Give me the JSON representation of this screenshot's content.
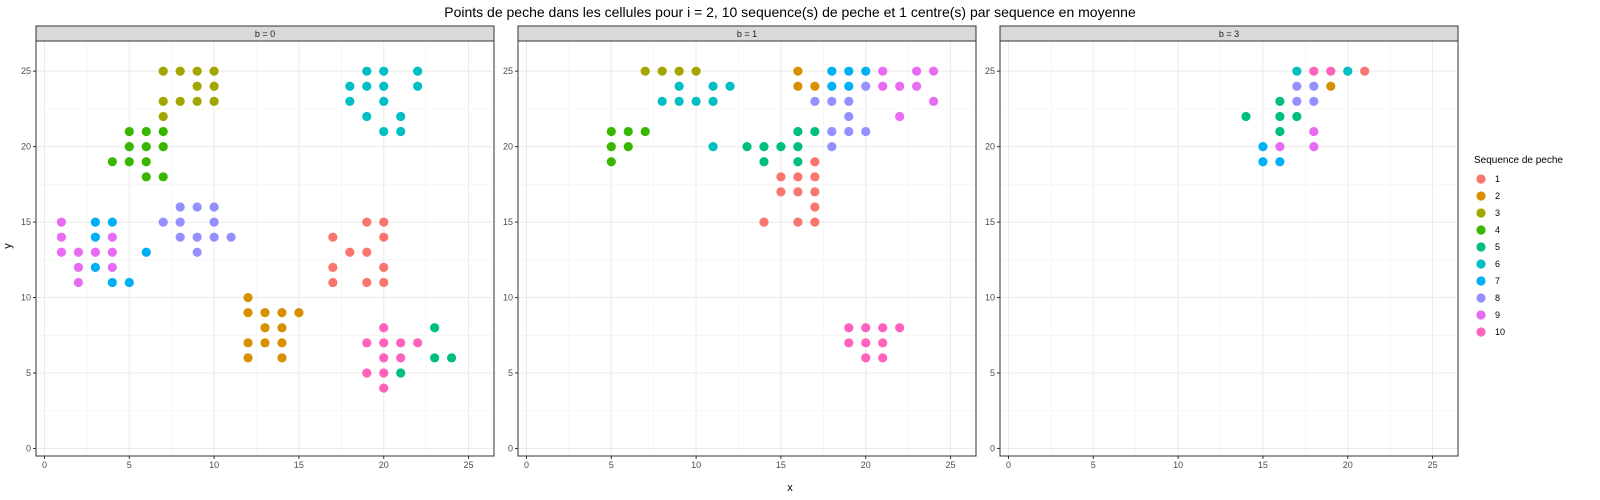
{
  "chart_data": {
    "type": "scatter",
    "title": "Points de peche dans les cellules pour i = 2, 10 sequence(s) de peche et 1 centre(s) par sequence en moyenne",
    "xlabel": "x",
    "ylabel": "y",
    "xlim": [
      -0.5,
      26.5
    ],
    "ylim": [
      -0.5,
      27
    ],
    "x_ticks": [
      0,
      5,
      10,
      15,
      20,
      25
    ],
    "y_ticks": [
      0,
      5,
      10,
      15,
      20,
      25
    ],
    "grid": true,
    "legend": {
      "title": "Sequence de peche",
      "placement": "right",
      "entries": [
        {
          "label": "1",
          "color": "#F8766D"
        },
        {
          "label": "2",
          "color": "#D89000"
        },
        {
          "label": "3",
          "color": "#A3A500"
        },
        {
          "label": "4",
          "color": "#39B600"
        },
        {
          "label": "5",
          "color": "#00BF7D"
        },
        {
          "label": "6",
          "color": "#00BFC4"
        },
        {
          "label": "7",
          "color": "#00B0F6"
        },
        {
          "label": "8",
          "color": "#9590FF"
        },
        {
          "label": "9",
          "color": "#E76BF3"
        },
        {
          "label": "10",
          "color": "#FF62BC"
        }
      ]
    },
    "panels": [
      {
        "label": "b = 0",
        "points": [
          [
            17,
            14,
            1
          ],
          [
            18,
            13,
            1
          ],
          [
            19,
            13,
            1
          ],
          [
            17,
            12,
            1
          ],
          [
            17,
            11,
            1
          ],
          [
            19,
            11,
            1
          ],
          [
            20,
            11,
            1
          ],
          [
            20,
            12,
            1
          ],
          [
            19,
            15,
            1
          ],
          [
            20,
            15,
            1
          ],
          [
            20,
            14,
            1
          ],
          [
            12,
            10,
            2
          ],
          [
            12,
            9,
            2
          ],
          [
            13,
            9,
            2
          ],
          [
            14,
            9,
            2
          ],
          [
            15,
            9,
            2
          ],
          [
            13,
            8,
            2
          ],
          [
            14,
            8,
            2
          ],
          [
            12,
            7,
            2
          ],
          [
            13,
            7,
            2
          ],
          [
            14,
            7,
            2
          ],
          [
            12,
            6,
            2
          ],
          [
            14,
            6,
            2
          ],
          [
            7,
            25,
            3
          ],
          [
            8,
            25,
            3
          ],
          [
            9,
            25,
            3
          ],
          [
            10,
            25,
            3
          ],
          [
            9,
            24,
            3
          ],
          [
            10,
            24,
            3
          ],
          [
            7,
            23,
            3
          ],
          [
            8,
            23,
            3
          ],
          [
            9,
            23,
            3
          ],
          [
            10,
            23,
            3
          ],
          [
            7,
            22,
            3
          ],
          [
            5,
            21,
            4
          ],
          [
            6,
            21,
            4
          ],
          [
            7,
            21,
            4
          ],
          [
            5,
            20,
            4
          ],
          [
            6,
            20,
            4
          ],
          [
            7,
            20,
            4
          ],
          [
            4,
            19,
            4
          ],
          [
            5,
            19,
            4
          ],
          [
            6,
            19,
            4
          ],
          [
            6,
            18,
            4
          ],
          [
            7,
            18,
            4
          ],
          [
            23,
            8,
            5
          ],
          [
            23,
            6,
            5
          ],
          [
            24,
            6,
            5
          ],
          [
            21,
            5,
            5
          ],
          [
            19,
            25,
            6
          ],
          [
            20,
            25,
            6
          ],
          [
            22,
            25,
            6
          ],
          [
            18,
            24,
            6
          ],
          [
            19,
            24,
            6
          ],
          [
            20,
            24,
            6
          ],
          [
            22,
            24,
            6
          ],
          [
            18,
            23,
            6
          ],
          [
            20,
            23,
            6
          ],
          [
            19,
            22,
            6
          ],
          [
            21,
            22,
            6
          ],
          [
            20,
            21,
            6
          ],
          [
            21,
            21,
            6
          ],
          [
            3,
            15,
            7
          ],
          [
            4,
            15,
            7
          ],
          [
            3,
            14,
            7
          ],
          [
            3,
            12,
            7
          ],
          [
            4,
            11,
            7
          ],
          [
            5,
            11,
            7
          ],
          [
            6,
            13,
            7
          ],
          [
            7,
            15,
            8
          ],
          [
            8,
            15,
            8
          ],
          [
            8,
            16,
            8
          ],
          [
            9,
            16,
            8
          ],
          [
            10,
            16,
            8
          ],
          [
            10,
            15,
            8
          ],
          [
            8,
            14,
            8
          ],
          [
            9,
            14,
            8
          ],
          [
            10,
            14,
            8
          ],
          [
            11,
            14,
            8
          ],
          [
            9,
            13,
            8
          ],
          [
            1,
            15,
            9
          ],
          [
            1,
            14,
            9
          ],
          [
            4,
            14,
            9
          ],
          [
            1,
            13,
            9
          ],
          [
            2,
            13,
            9
          ],
          [
            3,
            13,
            9
          ],
          [
            4,
            13,
            9
          ],
          [
            2,
            12,
            9
          ],
          [
            4,
            12,
            9
          ],
          [
            2,
            11,
            9
          ],
          [
            20,
            8,
            10
          ],
          [
            19,
            7,
            10
          ],
          [
            20,
            7,
            10
          ],
          [
            21,
            7,
            10
          ],
          [
            22,
            7,
            10
          ],
          [
            20,
            6,
            10
          ],
          [
            21,
            6,
            10
          ],
          [
            19,
            5,
            10
          ],
          [
            20,
            5,
            10
          ],
          [
            20,
            4,
            10
          ]
        ]
      },
      {
        "label": "b = 1",
        "points": [
          [
            14,
            15,
            1
          ],
          [
            15,
            18,
            1
          ],
          [
            16,
            18,
            1
          ],
          [
            17,
            18,
            1
          ],
          [
            17,
            19,
            1
          ],
          [
            15,
            17,
            1
          ],
          [
            16,
            17,
            1
          ],
          [
            17,
            17,
            1
          ],
          [
            17,
            16,
            1
          ],
          [
            16,
            15,
            1
          ],
          [
            17,
            15,
            1
          ],
          [
            16,
            25,
            2
          ],
          [
            16,
            24,
            2
          ],
          [
            17,
            24,
            2
          ],
          [
            7,
            25,
            3
          ],
          [
            8,
            25,
            3
          ],
          [
            9,
            25,
            3
          ],
          [
            10,
            25,
            3
          ],
          [
            5,
            21,
            4
          ],
          [
            6,
            21,
            4
          ],
          [
            7,
            21,
            4
          ],
          [
            5,
            20,
            4
          ],
          [
            6,
            20,
            4
          ],
          [
            5,
            19,
            4
          ],
          [
            13,
            20,
            5
          ],
          [
            14,
            20,
            5
          ],
          [
            15,
            20,
            5
          ],
          [
            16,
            20,
            5
          ],
          [
            14,
            19,
            5
          ],
          [
            16,
            19,
            5
          ],
          [
            16,
            21,
            5
          ],
          [
            17,
            21,
            5
          ],
          [
            9,
            24,
            6
          ],
          [
            11,
            24,
            6
          ],
          [
            12,
            24,
            6
          ],
          [
            8,
            23,
            6
          ],
          [
            9,
            23,
            6
          ],
          [
            10,
            23,
            6
          ],
          [
            11,
            23,
            6
          ],
          [
            11,
            20,
            6
          ],
          [
            18,
            25,
            7
          ],
          [
            19,
            25,
            7
          ],
          [
            20,
            25,
            7
          ],
          [
            18,
            24,
            7
          ],
          [
            19,
            24,
            7
          ],
          [
            20,
            24,
            8
          ],
          [
            17,
            23,
            8
          ],
          [
            18,
            23,
            8
          ],
          [
            19,
            23,
            8
          ],
          [
            19,
            22,
            8
          ],
          [
            18,
            21,
            8
          ],
          [
            19,
            21,
            8
          ],
          [
            20,
            21,
            8
          ],
          [
            18,
            20,
            8
          ],
          [
            21,
            25,
            9
          ],
          [
            23,
            25,
            9
          ],
          [
            24,
            25,
            9
          ],
          [
            21,
            24,
            9
          ],
          [
            22,
            24,
            9
          ],
          [
            23,
            24,
            9
          ],
          [
            24,
            23,
            9
          ],
          [
            22,
            22,
            9
          ],
          [
            19,
            8,
            10
          ],
          [
            20,
            8,
            10
          ],
          [
            21,
            8,
            10
          ],
          [
            22,
            8,
            10
          ],
          [
            19,
            7,
            10
          ],
          [
            20,
            7,
            10
          ],
          [
            21,
            7,
            10
          ],
          [
            20,
            6,
            10
          ],
          [
            21,
            6,
            10
          ]
        ]
      },
      {
        "label": "b = 3",
        "points": [
          [
            21,
            25,
            1
          ],
          [
            19,
            24,
            2
          ],
          [
            14,
            22,
            5
          ],
          [
            16,
            23,
            5
          ],
          [
            16,
            22,
            5
          ],
          [
            16,
            21,
            5
          ],
          [
            17,
            22,
            5
          ],
          [
            17,
            25,
            6
          ],
          [
            20,
            25,
            6
          ],
          [
            15,
            20,
            7
          ],
          [
            15,
            19,
            7
          ],
          [
            16,
            19,
            7
          ],
          [
            17,
            24,
            8
          ],
          [
            18,
            24,
            8
          ],
          [
            17,
            23,
            8
          ],
          [
            18,
            23,
            8
          ],
          [
            16,
            20,
            9
          ],
          [
            18,
            21,
            9
          ],
          [
            18,
            20,
            9
          ],
          [
            18,
            25,
            10
          ],
          [
            19,
            25,
            10
          ]
        ]
      }
    ]
  }
}
